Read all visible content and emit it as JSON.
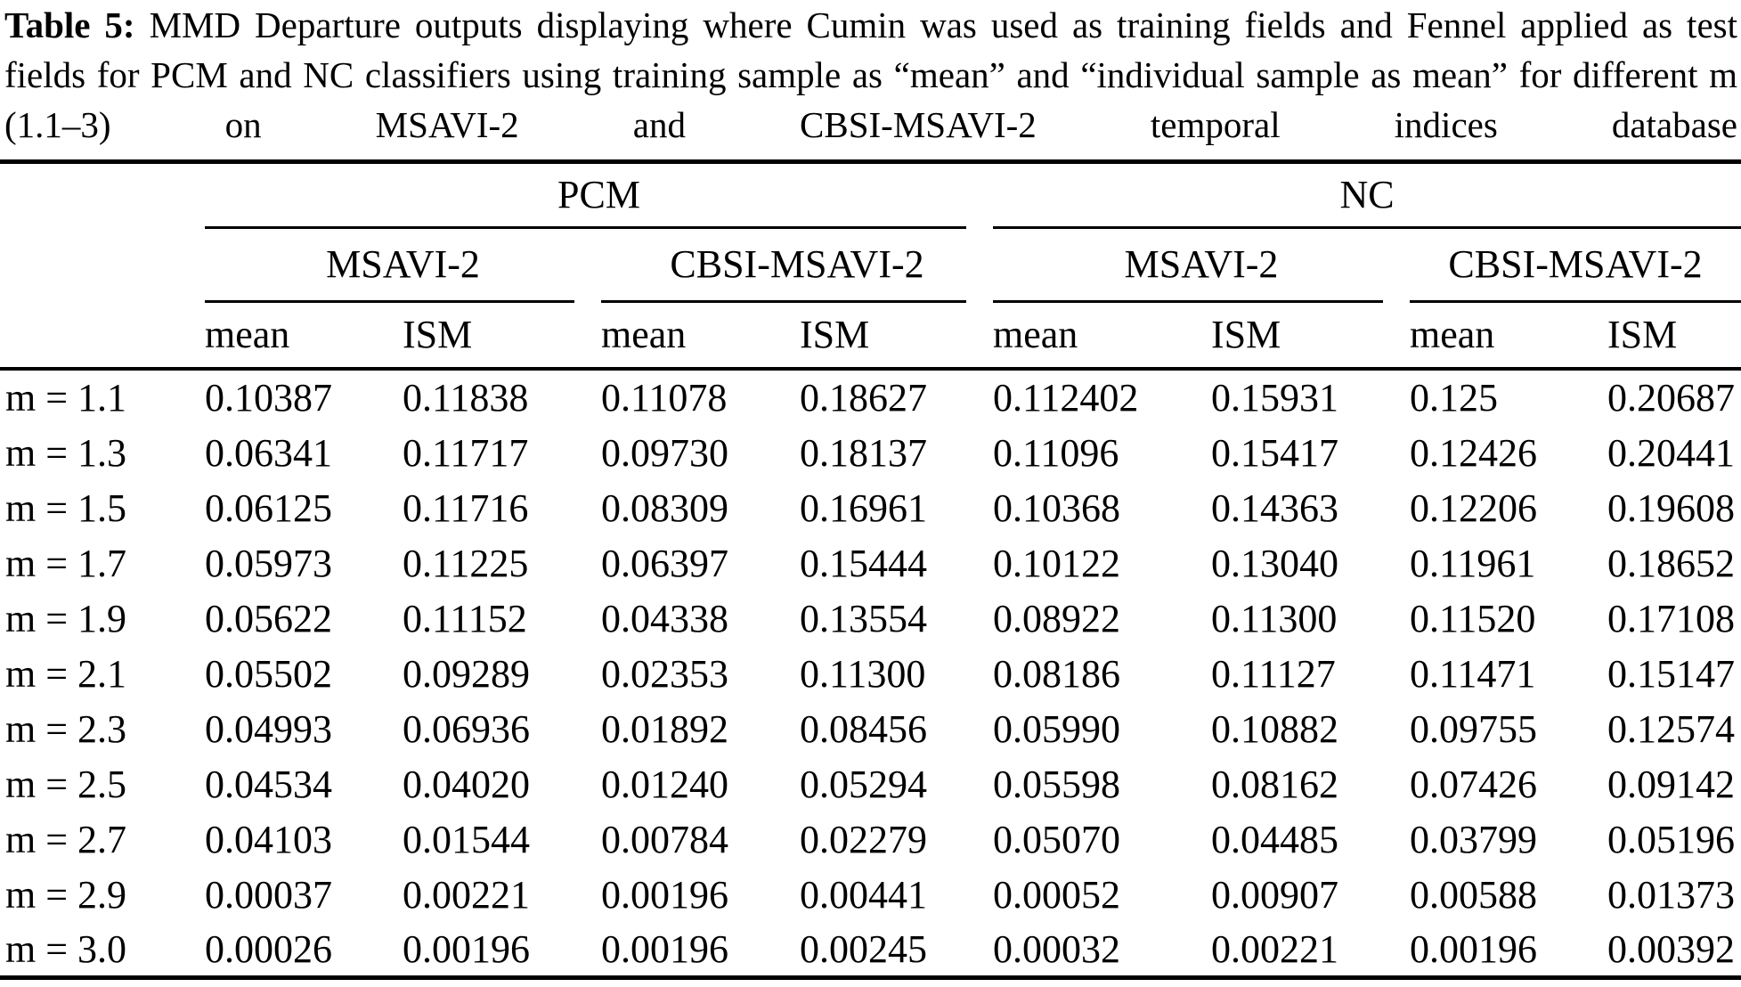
{
  "caption": {
    "label": "Table 5:",
    "text": "MMD Departure outputs displaying where Cumin was used as training fields and Fennel applied as test fields for PCM and NC classifiers using training sample as “mean” and “individual sample as mean” for different m (1.1–3) on MSAVI-2 and CBSI-MSAVI-2 temporal indices database",
    "table_number": "5"
  },
  "colors": {
    "text": "#000000",
    "background": "#ffffff",
    "rule": "#000000"
  },
  "table": {
    "group_headers": [
      "PCM",
      "NC"
    ],
    "index_headers": [
      "MSAVI-2",
      "CBSI-MSAVI-2",
      "MSAVI-2",
      "CBSI-MSAVI-2"
    ],
    "col_headers": [
      "mean",
      "ISM",
      "mean",
      "ISM",
      "mean",
      "ISM",
      "mean",
      "ISM"
    ],
    "rows": [
      {
        "label": "m = 1.1",
        "values": [
          "0.10387",
          "0.11838",
          "0.11078",
          "0.18627",
          "0.112402",
          "0.15931",
          "0.125",
          "0.20687"
        ]
      },
      {
        "label": "m = 1.3",
        "values": [
          "0.06341",
          "0.11717",
          "0.09730",
          "0.18137",
          "0.11096",
          "0.15417",
          "0.12426",
          "0.20441"
        ]
      },
      {
        "label": "m = 1.5",
        "values": [
          "0.06125",
          "0.11716",
          "0.08309",
          "0.16961",
          "0.10368",
          "0.14363",
          "0.12206",
          "0.19608"
        ]
      },
      {
        "label": "m = 1.7",
        "values": [
          "0.05973",
          "0.11225",
          "0.06397",
          "0.15444",
          "0.10122",
          "0.13040",
          "0.11961",
          "0.18652"
        ]
      },
      {
        "label": "m = 1.9",
        "values": [
          "0.05622",
          "0.11152",
          "0.04338",
          "0.13554",
          "0.08922",
          "0.11300",
          "0.11520",
          "0.17108"
        ]
      },
      {
        "label": "m = 2.1",
        "values": [
          "0.05502",
          "0.09289",
          "0.02353",
          "0.11300",
          "0.08186",
          "0.11127",
          "0.11471",
          "0.15147"
        ]
      },
      {
        "label": "m = 2.3",
        "values": [
          "0.04993",
          "0.06936",
          "0.01892",
          "0.08456",
          "0.05990",
          "0.10882",
          "0.09755",
          "0.12574"
        ]
      },
      {
        "label": "m = 2.5",
        "values": [
          "0.04534",
          "0.04020",
          "0.01240",
          "0.05294",
          "0.05598",
          "0.08162",
          "0.07426",
          "0.09142"
        ]
      },
      {
        "label": "m = 2.7",
        "values": [
          "0.04103",
          "0.01544",
          "0.00784",
          "0.02279",
          "0.05070",
          "0.04485",
          "0.03799",
          "0.05196"
        ]
      },
      {
        "label": "m = 2.9",
        "values": [
          "0.00037",
          "0.00221",
          "0.00196",
          "0.00441",
          "0.00052",
          "0.00907",
          "0.00588",
          "0.01373"
        ]
      },
      {
        "label": "m = 3.0",
        "values": [
          "0.00026",
          "0.00196",
          "0.00196",
          "0.00245",
          "0.00032",
          "0.00221",
          "0.00196",
          "0.00392"
        ]
      }
    ]
  }
}
